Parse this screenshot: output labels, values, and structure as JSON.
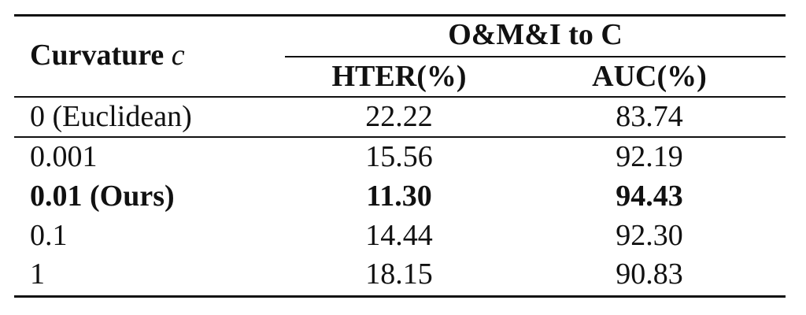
{
  "table": {
    "header": {
      "col1_label": "Curvature",
      "col1_symbol": "c",
      "group_label": "O&M&I to C",
      "col2_label": "HTER(%)",
      "col3_label": "AUC(%)"
    },
    "rows": [
      {
        "curvature": "0 (Euclidean)",
        "hter": "22.22",
        "auc": "83.74"
      },
      {
        "curvature": "0.001",
        "hter": "15.56",
        "auc": "92.19"
      },
      {
        "curvature": "0.01 (Ours)",
        "hter": "11.30",
        "auc": "94.43"
      },
      {
        "curvature": "0.1",
        "hter": "14.44",
        "auc": "92.30"
      },
      {
        "curvature": "1",
        "hter": "18.15",
        "auc": "90.83"
      }
    ]
  }
}
